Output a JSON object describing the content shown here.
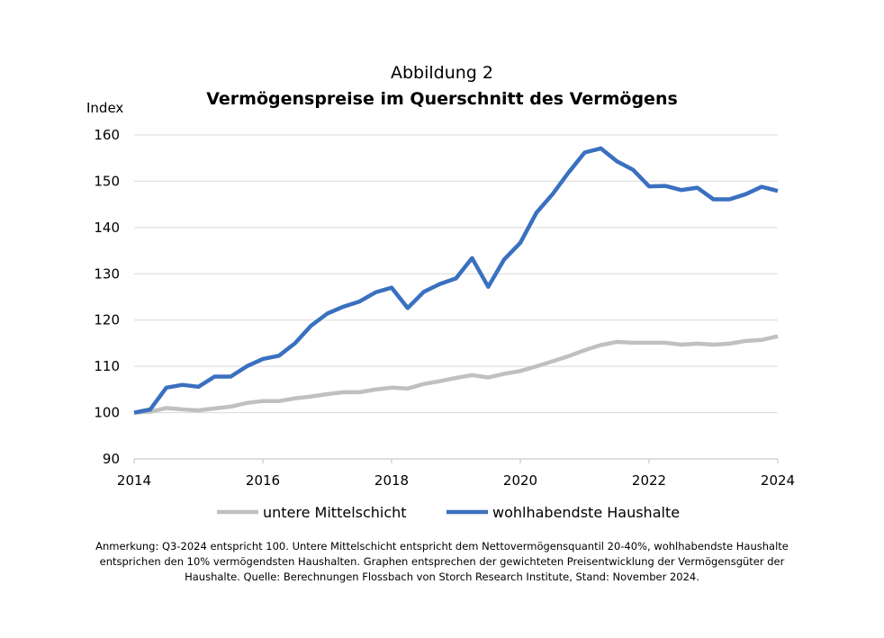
{
  "chart_data": {
    "type": "line",
    "title_top": "Abbildung 2",
    "title": "Vermögenspreise im Querschnitt des Vermögens",
    "ylabel": "Index",
    "xlabel": "",
    "ylim": [
      90,
      160
    ],
    "xlim": [
      2014,
      2024
    ],
    "y_ticks": [
      "90",
      "100",
      "110",
      "120",
      "130",
      "140",
      "150",
      "160"
    ],
    "x_ticks": [
      "2014",
      "2016",
      "2018",
      "2020",
      "2022",
      "2024"
    ],
    "grid": true,
    "legend_position": "bottom",
    "x": [
      2014.0,
      2014.25,
      2014.5,
      2014.75,
      2015.0,
      2015.25,
      2015.5,
      2015.75,
      2016.0,
      2016.25,
      2016.5,
      2016.75,
      2017.0,
      2017.25,
      2017.5,
      2017.75,
      2018.0,
      2018.25,
      2018.5,
      2018.75,
      2019.0,
      2019.25,
      2019.5,
      2019.75,
      2020.0,
      2020.25,
      2020.5,
      2020.75,
      2021.0,
      2021.25,
      2021.5,
      2021.75,
      2022.0,
      2022.25,
      2022.5,
      2022.75,
      2023.0,
      2023.25,
      2023.5,
      2023.75,
      2024.0
    ],
    "series": [
      {
        "name": "untere Mittelschicht",
        "color": "#c0c0c0",
        "values": [
          100.0,
          100.2,
          101.0,
          100.7,
          100.5,
          100.9,
          101.3,
          102.1,
          102.5,
          102.5,
          103.1,
          103.5,
          104.0,
          104.4,
          104.4,
          105.0,
          105.4,
          105.2,
          106.2,
          106.8,
          107.5,
          108.1,
          107.6,
          108.4,
          109.0,
          110.0,
          111.1,
          112.2,
          113.5,
          114.6,
          115.3,
          115.1,
          115.1,
          115.1,
          114.7,
          114.9,
          114.7,
          114.9,
          115.5,
          115.7,
          116.5
        ]
      },
      {
        "name": "wohlhabendste Haushalte",
        "color": "#3a70c0",
        "values": [
          100.0,
          100.7,
          105.4,
          106.0,
          105.6,
          107.8,
          107.8,
          110.0,
          111.6,
          112.3,
          115.0,
          118.8,
          121.4,
          122.9,
          124.0,
          126.0,
          127.0,
          122.6,
          126.1,
          127.8,
          129.0,
          133.4,
          127.2,
          133.1,
          136.7,
          143.2,
          147.2,
          151.9,
          156.2,
          157.1,
          154.3,
          152.5,
          148.9,
          149.0,
          148.1,
          148.6,
          146.1,
          146.1,
          147.2,
          148.8,
          147.9
        ]
      }
    ]
  },
  "note": {
    "line1": "Anmerkung: Q3-2024 entspricht 100. Untere Mittelschicht entspricht dem Nettovermögensquantil 20-40%, wohlhabendste Haushalte",
    "line2": "entsprichen den 10% vermögendsten Haushalten.  Graphen entsprechen der gewichteten Preisentwicklung der Vermögensgüter der",
    "line3": "Haushalte. Quelle: Berechnungen Flossbach von Storch Research Institute, Stand: November 2024."
  }
}
